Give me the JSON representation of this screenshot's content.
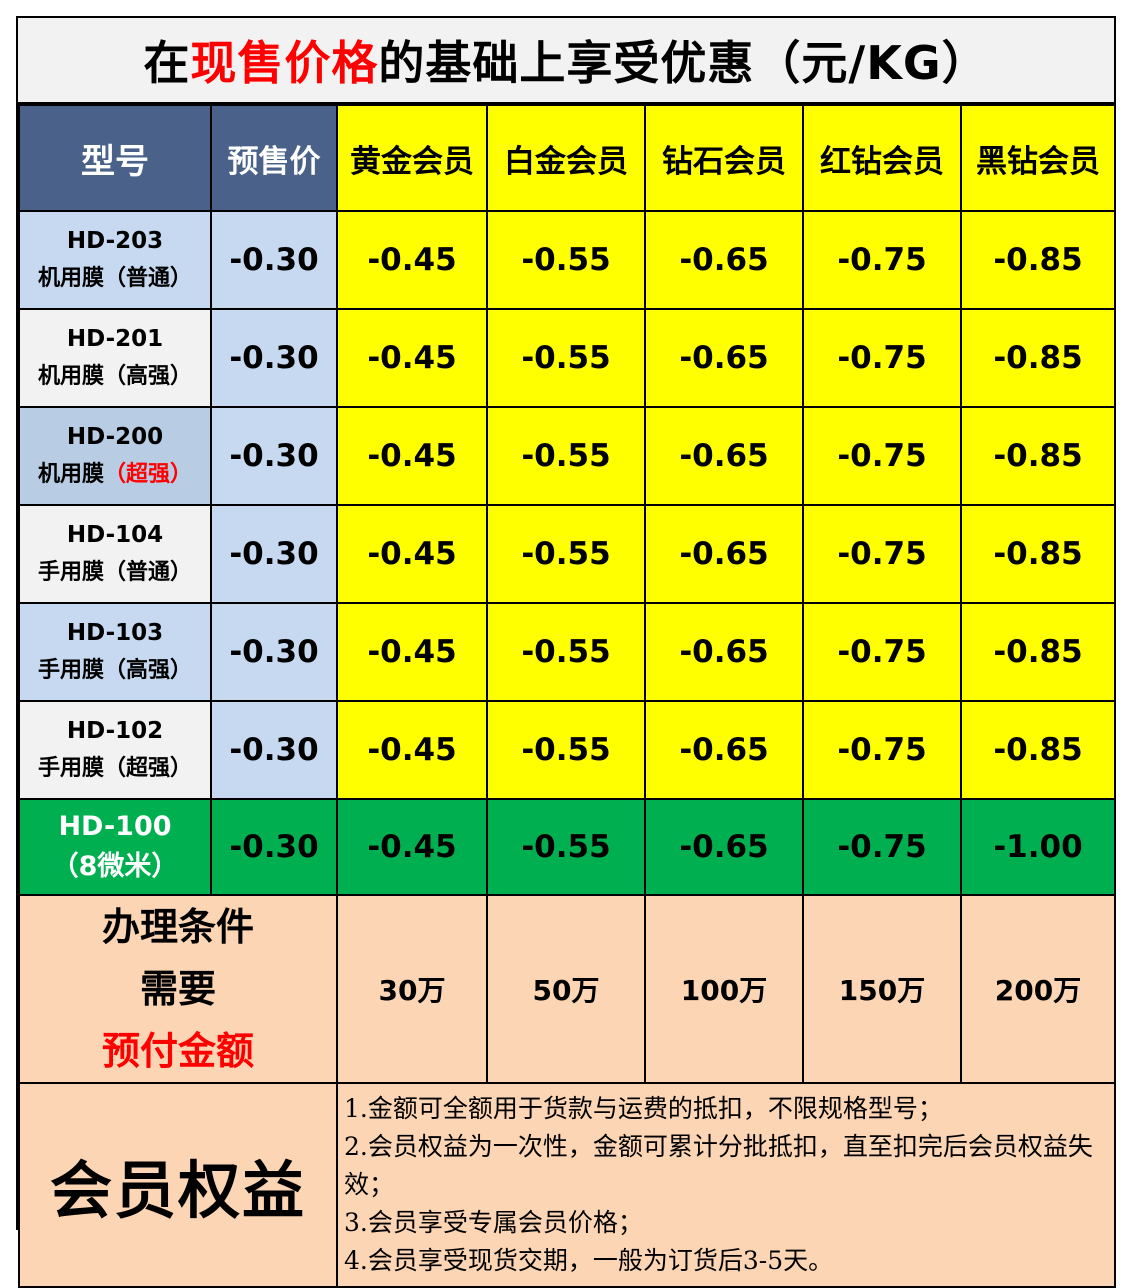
{
  "title": {
    "part1": "在",
    "part2_red": "现售价格",
    "part3": "的基础上享受优惠（元/KG）"
  },
  "headers": {
    "model": "型号",
    "presale": "预售价",
    "tiers": [
      "黄金会员",
      "白金会员",
      "钻石会员",
      "红钻会员",
      "黑钻会员"
    ]
  },
  "rows": [
    {
      "code": "HD-203",
      "spec": "机用膜（普通）",
      "spec_red": "",
      "spec_after": "",
      "presale": "-0.30",
      "values": [
        "-0.45",
        "-0.55",
        "-0.65",
        "-0.75",
        "-0.85"
      ]
    },
    {
      "code": "HD-201",
      "spec": "机用膜（高强）",
      "spec_red": "",
      "spec_after": "",
      "presale": "-0.30",
      "values": [
        "-0.45",
        "-0.55",
        "-0.65",
        "-0.75",
        "-0.85"
      ]
    },
    {
      "code": "HD-200",
      "spec": "机用膜",
      "spec_red": "（超强）",
      "spec_after": "",
      "presale": "-0.30",
      "values": [
        "-0.45",
        "-0.55",
        "-0.65",
        "-0.75",
        "-0.85"
      ]
    },
    {
      "code": "HD-104",
      "spec": "手用膜（普通）",
      "spec_red": "",
      "spec_after": "",
      "presale": "-0.30",
      "values": [
        "-0.45",
        "-0.55",
        "-0.65",
        "-0.75",
        "-0.85"
      ]
    },
    {
      "code": "HD-103",
      "spec": "手用膜（高强）",
      "spec_red": "",
      "spec_after": "",
      "presale": "-0.30",
      "values": [
        "-0.45",
        "-0.55",
        "-0.65",
        "-0.75",
        "-0.85"
      ]
    },
    {
      "code": "HD-102",
      "spec": "手用膜（超强）",
      "spec_red": "",
      "spec_after": "",
      "presale": "-0.30",
      "values": [
        "-0.45",
        "-0.55",
        "-0.65",
        "-0.75",
        "-0.85"
      ]
    }
  ],
  "special_row": {
    "code": "HD-100",
    "spec": "（8微米）",
    "presale": "-0.30",
    "values": [
      "-0.45",
      "-0.55",
      "-0.65",
      "-0.75",
      "-1.00"
    ]
  },
  "conditions": {
    "line1": "办理条件",
    "line2_black": "需要",
    "line2_red": "预付金额",
    "amounts": [
      "30万",
      "50万",
      "100万",
      "150万",
      "200万"
    ]
  },
  "rights": {
    "label": "会员权益",
    "items": [
      "1.金额可全额用于货款与运费的抵扣，不限规格型号；",
      "2.会员权益为一次性，金额可累计分批抵扣，直至扣完后会员权益失效；",
      "3.会员享受专属会员价格；",
      "4.会员享受现货交期，一般为订货后3-5天。"
    ]
  },
  "colors": {
    "header_blue": "#4a6289",
    "yellow": "#ffff00",
    "green": "#00b050",
    "peach": "#fcd5b4",
    "light_blue": "#c6d9f1",
    "light_gray": "#f2f2f2",
    "accent_red": "#ff0000"
  }
}
